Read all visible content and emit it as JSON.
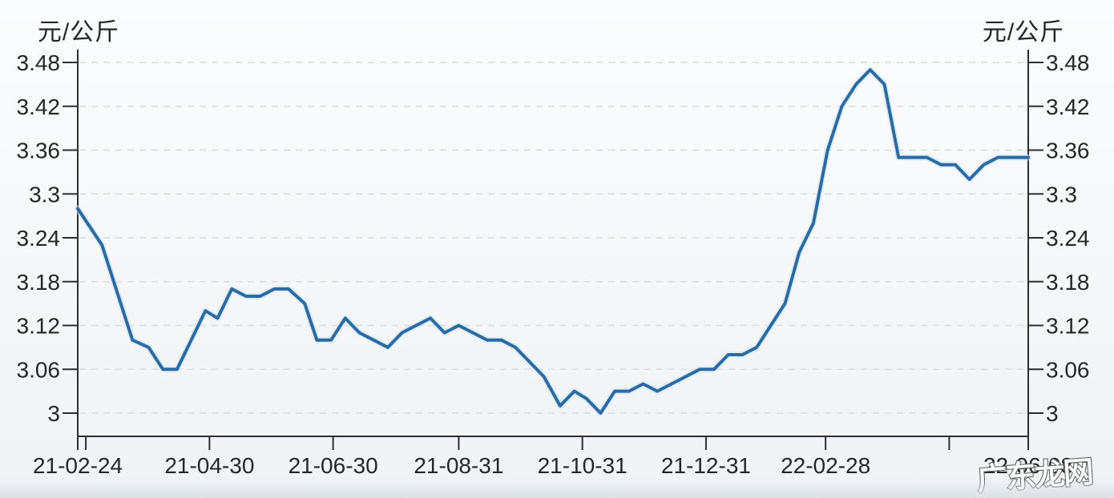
{
  "watermark": {
    "text": "广东龙网"
  },
  "colors": {
    "background": "#f5f7f9",
    "axis": "#2b2e33",
    "text": "#26262a",
    "grid": "#d9dde1",
    "line": "#2a6ba6",
    "line_halo": "#cfe6f2",
    "watermark_fill": "#fcfcfd",
    "watermark_stroke": "#55575c"
  },
  "chart_data": {
    "type": "line",
    "title": "",
    "ylabel_left": "元/公斤",
    "ylabel_right": "元/公斤",
    "xlabel": "",
    "legend": "none",
    "grid": {
      "horizontal": true,
      "vertical": false,
      "style": "dashed"
    },
    "ylim": [
      3,
      3.48
    ],
    "y_tick_interval": 0.06,
    "y_ticks": [
      {
        "value": 3,
        "label": "3"
      },
      {
        "value": 3.06,
        "label": "3.06"
      },
      {
        "value": 3.12,
        "label": "3.12"
      },
      {
        "value": 3.18,
        "label": "3.18"
      },
      {
        "value": 3.24,
        "label": "3.24"
      },
      {
        "value": 3.3,
        "label": "3.3"
      },
      {
        "value": 3.36,
        "label": "3.36"
      },
      {
        "value": 3.42,
        "label": "3.42"
      },
      {
        "value": 3.48,
        "label": "3.48"
      }
    ],
    "x_range": [
      "2021-02-24",
      "2022-06-08"
    ],
    "x_ticks": [
      {
        "date": "2021-02-24",
        "label": "21-02-24"
      },
      {
        "date": "2021-02-28",
        "label": ""
      },
      {
        "date": "2021-04-30",
        "label": "21-04-30"
      },
      {
        "date": "2021-06-30",
        "label": "21-06-30"
      },
      {
        "date": "2021-08-31",
        "label": "21-08-31"
      },
      {
        "date": "2021-10-31",
        "label": "21-10-31"
      },
      {
        "date": "2021-12-31",
        "label": "21-12-31"
      },
      {
        "date": "2022-02-28",
        "label": "22-02-28"
      },
      {
        "date": "2022-04-30",
        "label": ""
      },
      {
        "date": "2022-06-08",
        "label": "22-06-08"
      }
    ],
    "series": [
      {
        "name": "",
        "unit": "元/公斤",
        "dates": [
          "2021-02-24",
          "2021-03-08",
          "2021-03-23",
          "2021-03-31",
          "2021-04-07",
          "2021-04-14",
          "2021-04-21",
          "2021-04-28",
          "2021-05-04",
          "2021-05-11",
          "2021-05-18",
          "2021-05-25",
          "2021-06-01",
          "2021-06-08",
          "2021-06-16",
          "2021-06-22",
          "2021-06-29",
          "2021-07-06",
          "2021-07-13",
          "2021-07-20",
          "2021-07-27",
          "2021-08-03",
          "2021-08-10",
          "2021-08-17",
          "2021-08-24",
          "2021-08-31",
          "2021-09-07",
          "2021-09-14",
          "2021-09-21",
          "2021-09-28",
          "2021-10-05",
          "2021-10-12",
          "2021-10-20",
          "2021-10-27",
          "2021-11-02",
          "2021-11-09",
          "2021-11-16",
          "2021-11-23",
          "2021-11-30",
          "2021-12-07",
          "2021-12-14",
          "2021-12-21",
          "2021-12-28",
          "2022-01-04",
          "2022-01-11",
          "2022-01-18",
          "2022-01-25",
          "2022-02-01",
          "2022-02-08",
          "2022-02-15",
          "2022-02-22",
          "2022-03-01",
          "2022-03-08",
          "2022-03-15",
          "2022-03-22",
          "2022-03-29",
          "2022-04-05",
          "2022-04-12",
          "2022-04-19",
          "2022-04-26",
          "2022-05-03",
          "2022-05-10",
          "2022-05-17",
          "2022-05-24",
          "2022-05-31",
          "2022-06-08"
        ],
        "values": [
          3.28,
          3.23,
          3.1,
          3.09,
          3.06,
          3.06,
          3.1,
          3.14,
          3.13,
          3.17,
          3.16,
          3.16,
          3.17,
          3.17,
          3.15,
          3.1,
          3.1,
          3.13,
          3.11,
          3.1,
          3.09,
          3.11,
          3.12,
          3.13,
          3.11,
          3.12,
          3.11,
          3.1,
          3.1,
          3.09,
          3.07,
          3.05,
          3.01,
          3.03,
          3.02,
          3.0,
          3.03,
          3.03,
          3.04,
          3.03,
          3.04,
          3.05,
          3.06,
          3.06,
          3.08,
          3.08,
          3.09,
          3.12,
          3.15,
          3.22,
          3.26,
          3.36,
          3.42,
          3.45,
          3.47,
          3.45,
          3.35,
          3.35,
          3.35,
          3.34,
          3.34,
          3.32,
          3.34,
          3.35,
          3.35,
          3.35
        ]
      }
    ]
  }
}
